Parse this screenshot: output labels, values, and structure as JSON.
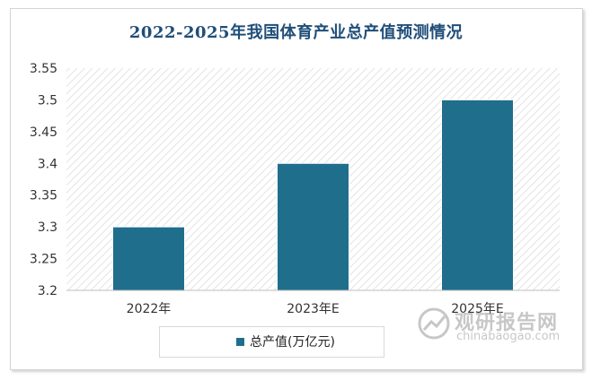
{
  "chart_data": {
    "type": "bar",
    "title": "2022-2025年我国体育产业总产值预测情况",
    "categories": [
      "2022年",
      "2023年E",
      "2025年E"
    ],
    "series": [
      {
        "name": "总产值(万亿元)",
        "values": [
          3.3,
          3.4,
          3.5
        ]
      }
    ],
    "ylim": [
      3.2,
      3.55
    ],
    "yticks": [
      "3.2",
      "3.25",
      "3.3",
      "3.35",
      "3.4",
      "3.45",
      "3.5",
      "3.55"
    ],
    "xlabel": "",
    "ylabel": "",
    "legend_position": "bottom",
    "grid": false,
    "bar_color": "#1f6e8c"
  },
  "watermark": {
    "cn": "观研报告网",
    "en": "chinabaogao.com"
  }
}
